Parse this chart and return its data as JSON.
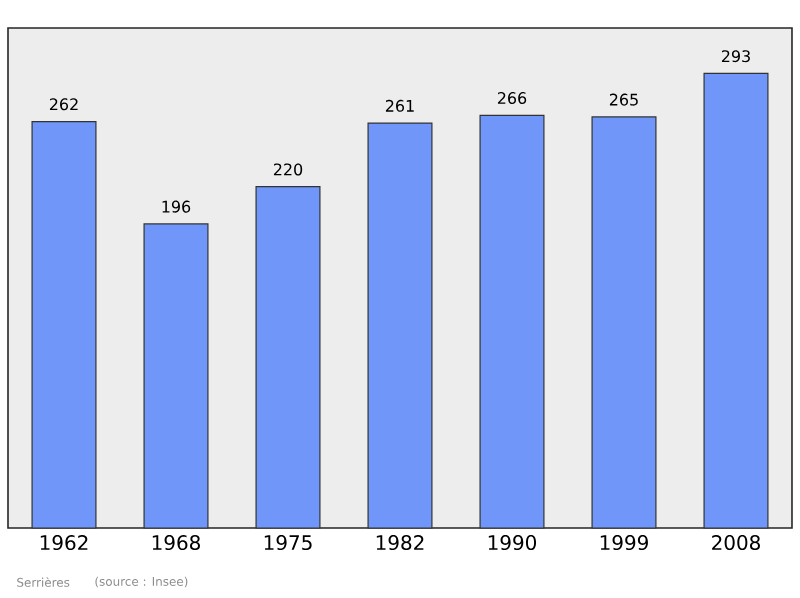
{
  "chart_data": {
    "type": "bar",
    "categories": [
      "1962",
      "1968",
      "1975",
      "1982",
      "1990",
      "1999",
      "2008"
    ],
    "values": [
      262,
      196,
      220,
      261,
      266,
      265,
      293
    ],
    "color": "#6f96f8",
    "data_labels": true,
    "annotations": [
      "Serrières",
      "(source : Insee)"
    ]
  }
}
